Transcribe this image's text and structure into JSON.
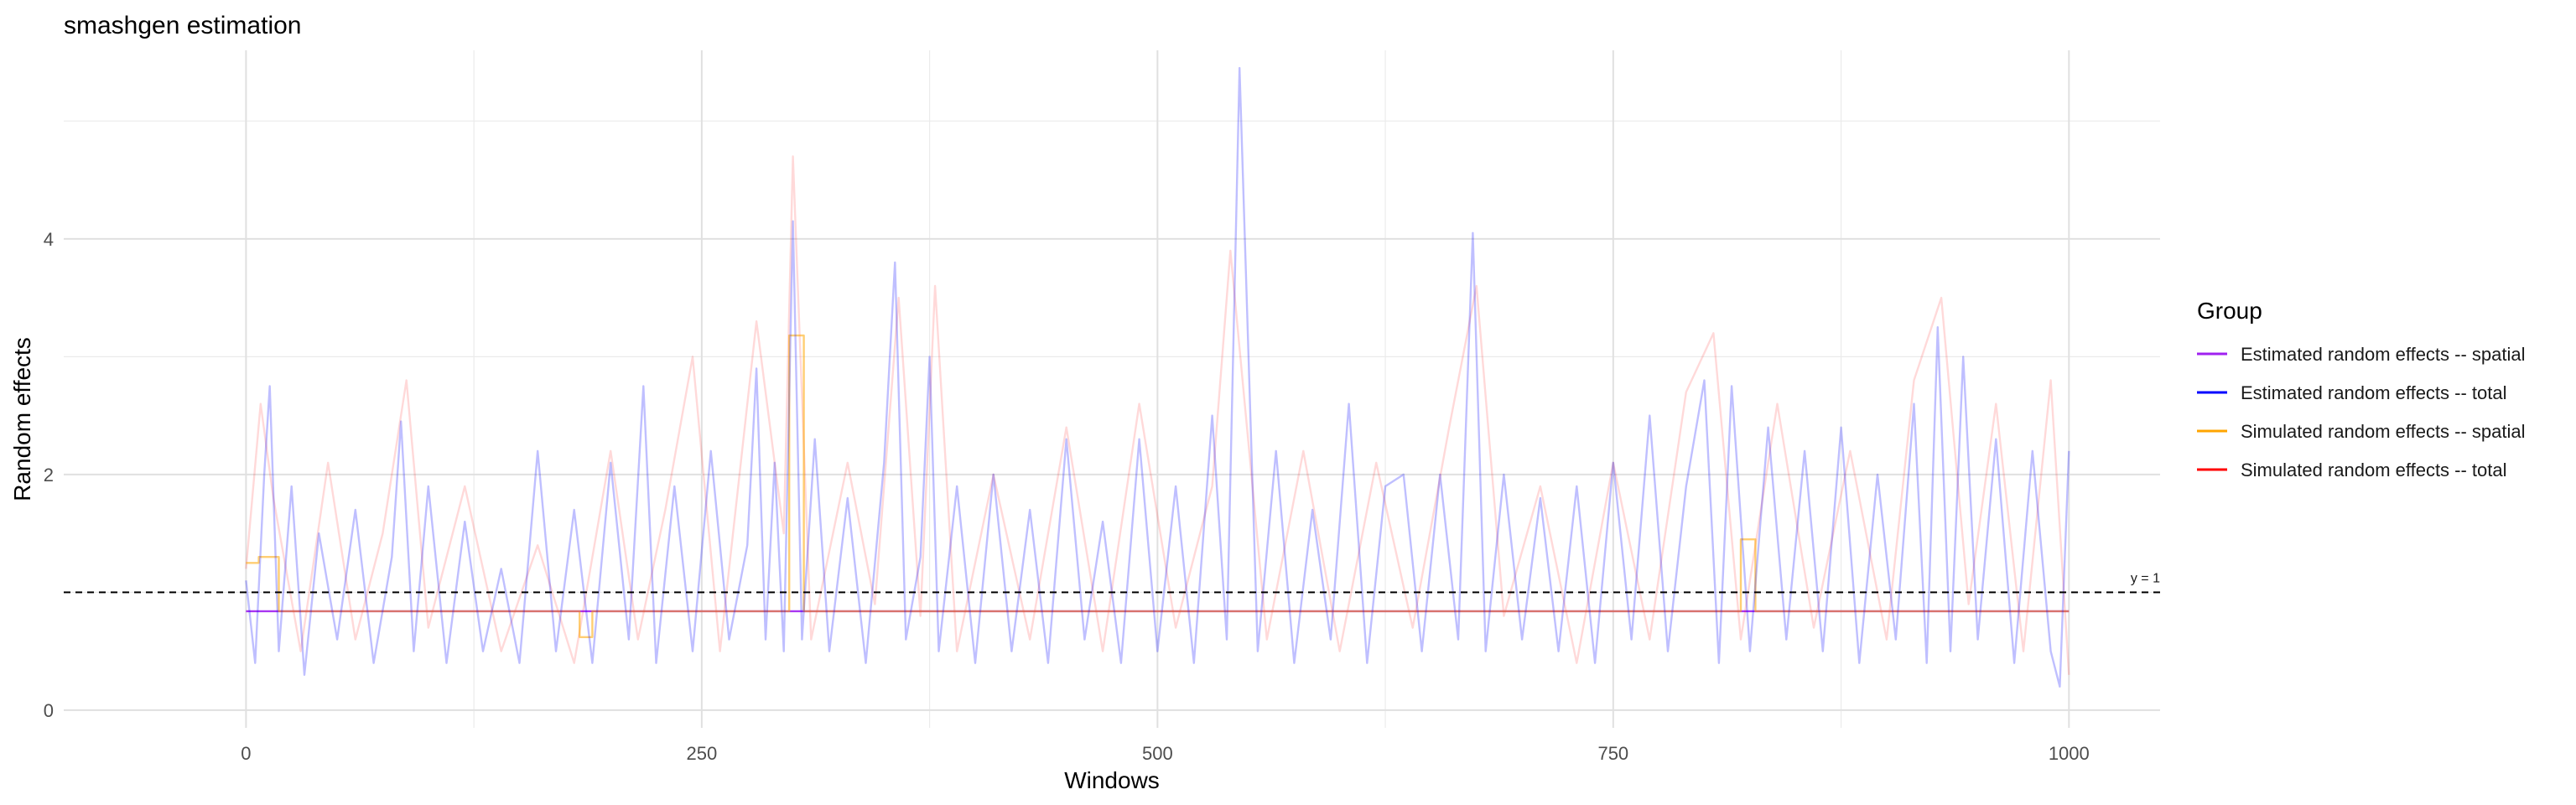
{
  "chart_data": {
    "type": "line",
    "title": "smashgen estimation",
    "xlabel": "Windows",
    "ylabel": "Random effects",
    "xlim": [
      -100,
      1050
    ],
    "ylim": [
      -0.15,
      5.6
    ],
    "x_ticks": [
      0,
      250,
      500,
      750,
      1000
    ],
    "x_tick_labels": [
      "0",
      "250",
      "500",
      "750",
      "1000"
    ],
    "y_ticks": [
      0,
      2,
      4
    ],
    "y_tick_labels": [
      "0",
      "2",
      "4"
    ],
    "grid": true,
    "reference_line": {
      "y": 1,
      "label": "y = 1",
      "style": "dashed"
    },
    "legend": {
      "title": "Group",
      "position": "right",
      "entries": [
        {
          "name": "Estimated random effects -- spatial",
          "color": "#A020F0"
        },
        {
          "name": "Estimated random effects -- total",
          "color": "#0000FF"
        },
        {
          "name": "Simulated random effects -- spatial",
          "color": "#FFA500"
        },
        {
          "name": "Simulated random effects -- total",
          "color": "#FF0000"
        }
      ]
    },
    "series": [
      {
        "name": "Estimated random effects -- spatial",
        "color": "#A020F0",
        "opacity": 0.9,
        "description": "approximately constant",
        "x": [
          0,
          1000
        ],
        "values": [
          0.84,
          0.84
        ]
      },
      {
        "name": "Simulated random effects -- total",
        "color": "#FF0000",
        "opacity": 0.15,
        "x": [
          0,
          8,
          15,
          30,
          45,
          60,
          75,
          88,
          100,
          120,
          140,
          160,
          180,
          200,
          215,
          230,
          245,
          260,
          280,
          295,
          300,
          310,
          330,
          345,
          358,
          370,
          378,
          390,
          410,
          430,
          450,
          470,
          490,
          510,
          530,
          540,
          560,
          580,
          600,
          620,
          640,
          660,
          675,
          690,
          710,
          730,
          750,
          770,
          790,
          805,
          820,
          840,
          860,
          880,
          900,
          915,
          930,
          945,
          960,
          975,
          990,
          1000
        ],
        "values": [
          1.2,
          2.6,
          1.8,
          0.5,
          2.1,
          0.6,
          1.5,
          2.8,
          0.7,
          1.9,
          0.5,
          1.4,
          0.4,
          2.2,
          0.6,
          1.7,
          3.0,
          0.5,
          3.3,
          1.5,
          4.7,
          0.6,
          2.1,
          0.9,
          3.5,
          0.8,
          3.6,
          0.5,
          2.0,
          0.6,
          2.4,
          0.5,
          2.6,
          0.7,
          1.9,
          3.9,
          0.6,
          2.2,
          0.5,
          2.1,
          0.7,
          2.4,
          3.6,
          0.8,
          1.9,
          0.4,
          2.1,
          0.6,
          2.7,
          3.2,
          0.6,
          2.6,
          0.7,
          2.2,
          0.6,
          2.8,
          3.5,
          0.9,
          2.6,
          0.5,
          2.8,
          0.3
        ]
      },
      {
        "name": "Simulated random effects -- spatial",
        "color": "#FFA500",
        "opacity": 0.55,
        "description": "piecewise constant steps",
        "x": [
          0,
          7,
          7,
          18,
          18,
          183,
          183,
          190,
          190,
          298,
          298,
          306,
          306,
          500,
          500,
          820,
          820,
          828,
          828,
          1000
        ],
        "values": [
          1.25,
          1.25,
          1.3,
          1.3,
          0.84,
          0.84,
          0.62,
          0.62,
          0.84,
          0.84,
          3.18,
          3.18,
          0.84,
          0.84,
          0.84,
          0.84,
          1.45,
          1.45,
          0.84,
          0.84
        ]
      },
      {
        "name": "Estimated random effects -- total",
        "color": "#0000FF",
        "opacity": 0.25,
        "x": [
          0,
          5,
          10,
          13,
          18,
          25,
          32,
          40,
          50,
          60,
          70,
          80,
          85,
          92,
          100,
          110,
          120,
          130,
          140,
          150,
          160,
          170,
          180,
          190,
          200,
          210,
          218,
          225,
          235,
          245,
          255,
          265,
          275,
          280,
          285,
          290,
          295,
          300,
          305,
          312,
          320,
          330,
          340,
          350,
          356,
          362,
          370,
          375,
          380,
          390,
          400,
          410,
          420,
          430,
          440,
          450,
          460,
          470,
          480,
          490,
          500,
          510,
          520,
          530,
          538,
          545,
          555,
          565,
          575,
          585,
          595,
          605,
          615,
          625,
          635,
          645,
          655,
          665,
          673,
          680,
          690,
          700,
          710,
          720,
          730,
          740,
          750,
          760,
          770,
          780,
          790,
          800,
          808,
          815,
          825,
          835,
          845,
          855,
          865,
          875,
          885,
          895,
          905,
          915,
          922,
          928,
          935,
          942,
          950,
          960,
          970,
          980,
          990,
          995,
          1000
        ],
        "values": [
          1.1,
          0.4,
          2.0,
          2.75,
          0.5,
          1.9,
          0.3,
          1.5,
          0.6,
          1.7,
          0.4,
          1.3,
          2.45,
          0.5,
          1.9,
          0.4,
          1.6,
          0.5,
          1.2,
          0.4,
          2.2,
          0.5,
          1.7,
          0.4,
          2.1,
          0.6,
          2.75,
          0.4,
          1.9,
          0.5,
          2.2,
          0.6,
          1.4,
          2.9,
          0.6,
          2.1,
          0.5,
          4.15,
          0.6,
          2.3,
          0.5,
          1.8,
          0.4,
          2.1,
          3.8,
          0.6,
          1.3,
          3.0,
          0.5,
          1.9,
          0.4,
          2.0,
          0.5,
          1.7,
          0.4,
          2.3,
          0.6,
          1.6,
          0.4,
          2.3,
          0.5,
          1.9,
          0.4,
          2.5,
          0.6,
          5.45,
          0.5,
          2.2,
          0.4,
          1.7,
          0.6,
          2.6,
          0.4,
          1.9,
          2.0,
          0.5,
          2.0,
          0.6,
          4.05,
          0.5,
          2.0,
          0.6,
          1.8,
          0.5,
          1.9,
          0.4,
          2.1,
          0.6,
          2.5,
          0.5,
          1.9,
          2.8,
          0.4,
          2.75,
          0.5,
          2.4,
          0.6,
          2.2,
          0.5,
          2.4,
          0.4,
          2.0,
          0.6,
          2.6,
          0.4,
          3.25,
          0.5,
          3.0,
          0.6,
          2.3,
          0.4,
          2.2,
          0.5,
          0.2,
          2.2
        ]
      }
    ]
  }
}
